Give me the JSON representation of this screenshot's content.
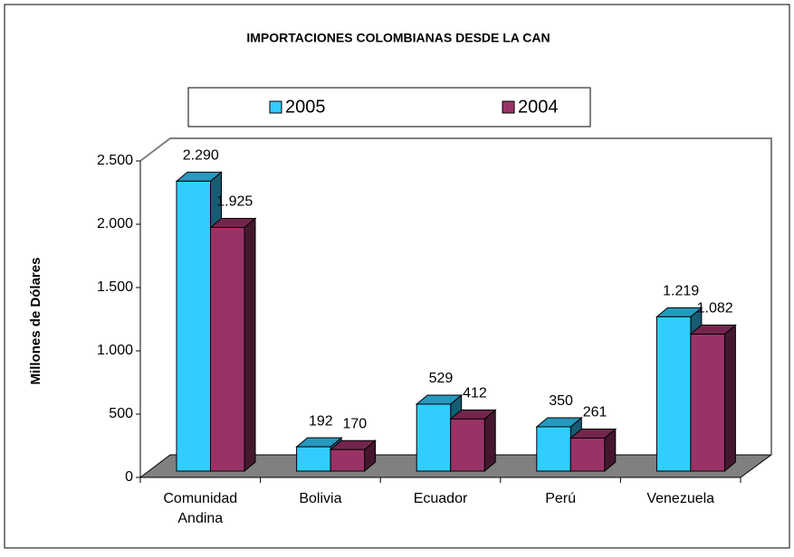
{
  "chart_data": {
    "type": "bar3d",
    "title": "IMPORTACIONES COLOMBIANAS DESDE LA CAN",
    "y_label": "Millones de Dólares",
    "categories": [
      "Comunidad Andina",
      "Bolivia",
      "Ecuador",
      "Perú",
      "Venezuela"
    ],
    "series": [
      {
        "name": "2005",
        "color": "#33ccff",
        "values": [
          2290,
          192,
          529,
          350,
          1219
        ],
        "value_labels": [
          "2.290",
          "192",
          "529",
          "350",
          "1.219"
        ]
      },
      {
        "name": "2004",
        "color": "#993366",
        "values": [
          1925,
          170,
          412,
          261,
          1082
        ],
        "value_labels": [
          "1.925",
          "170",
          "412",
          "261",
          "1.082"
        ]
      }
    ],
    "ylim": [
      0,
      2500
    ],
    "yticks": [
      0,
      500,
      {
        "value": 1000,
        "label": "1.000"
      },
      {
        "value": 1500,
        "label": "1.500"
      },
      {
        "value": 2000,
        "label": "2.000"
      },
      {
        "value": 2500,
        "label": "2.500"
      }
    ],
    "legend": "top"
  }
}
